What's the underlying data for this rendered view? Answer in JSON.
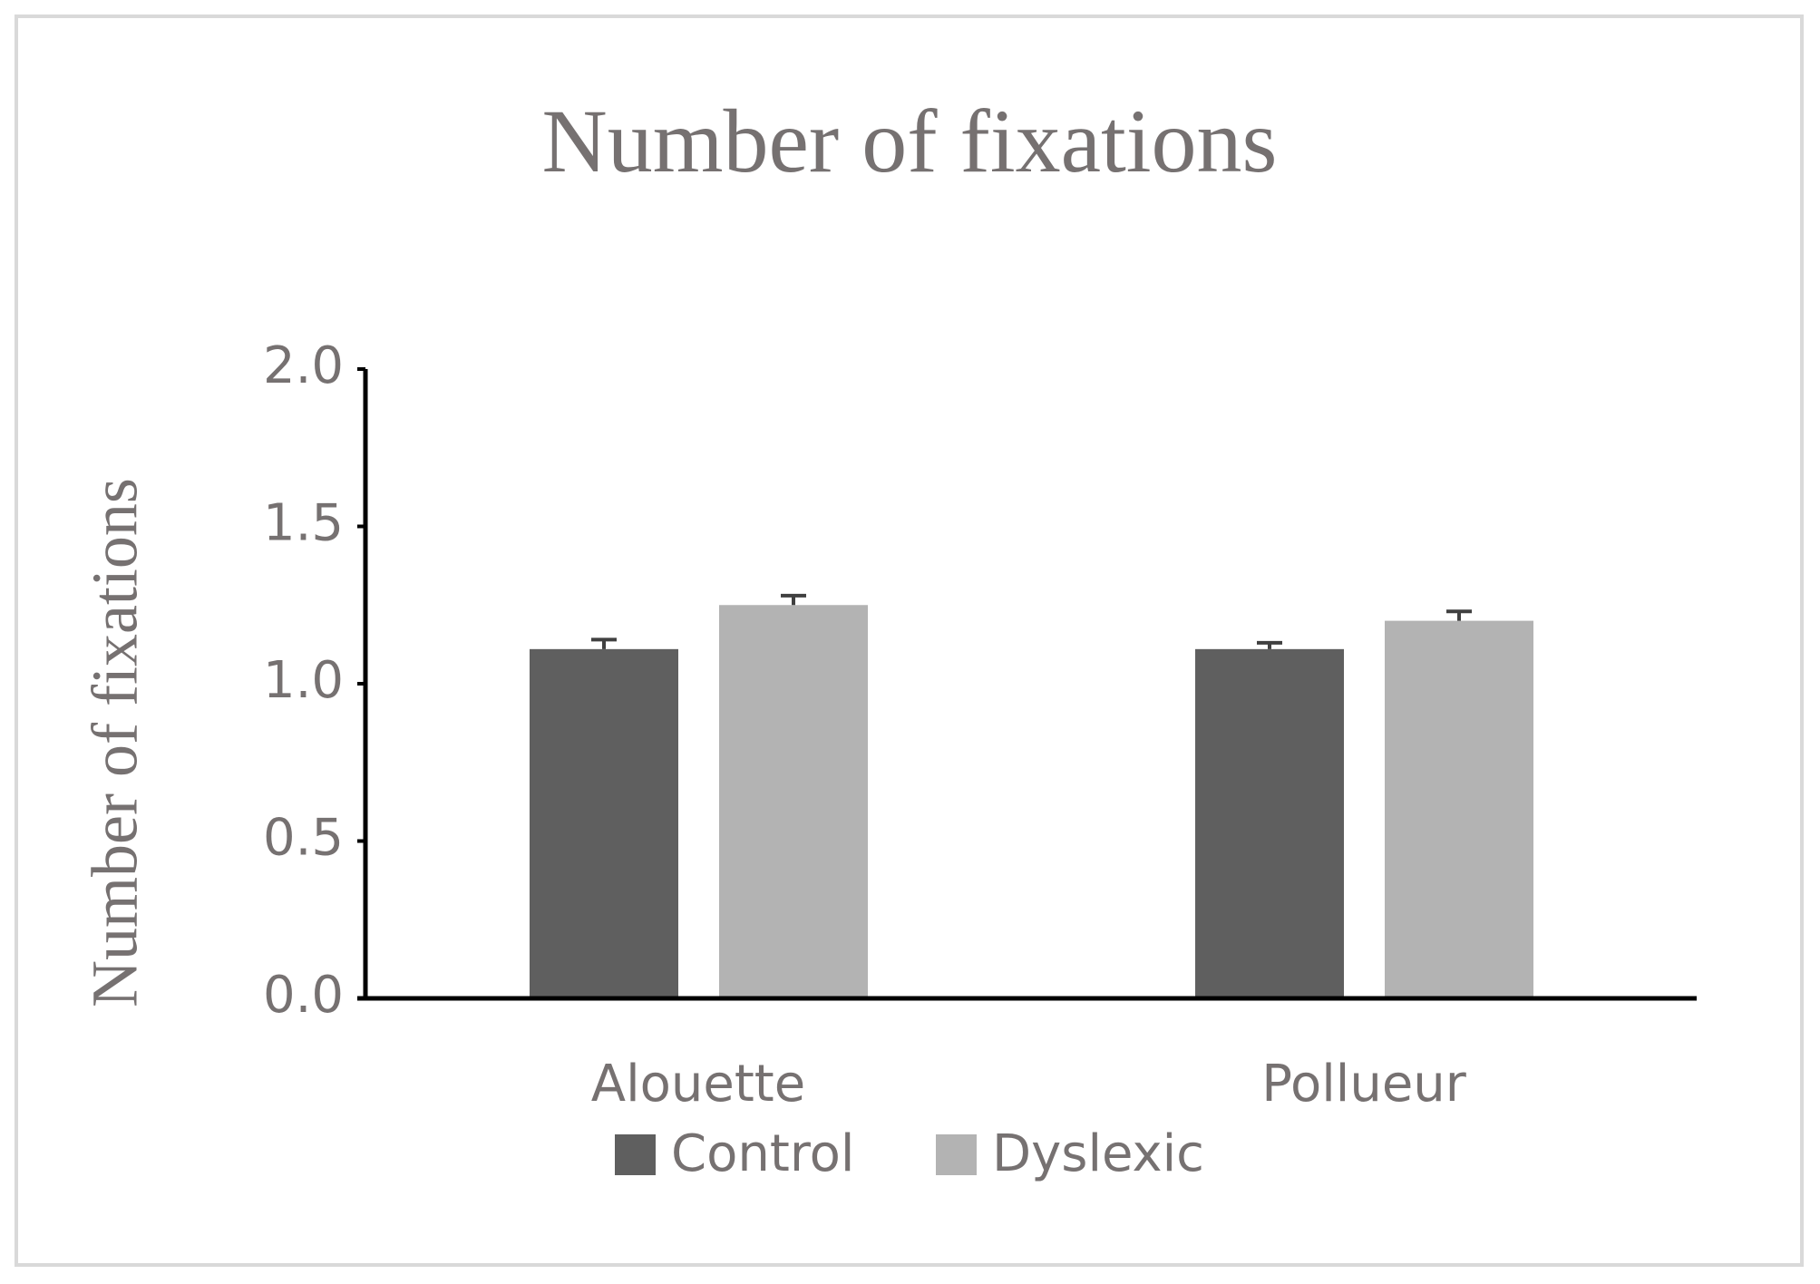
{
  "chart_data": {
    "type": "bar",
    "title": "Number of fixations",
    "y_label": "Number of fixations",
    "categories": [
      "Alouette",
      "Pollueur"
    ],
    "series": [
      {
        "name": "Control",
        "color": "#5f5f5f",
        "values": [
          1.11,
          1.11
        ],
        "errors": [
          0.03,
          0.02
        ]
      },
      {
        "name": "Dyslexic",
        "color": "#b3b3b3",
        "values": [
          1.25,
          1.2
        ],
        "errors": [
          0.03,
          0.03
        ]
      }
    ],
    "ylim": [
      0,
      2.0
    ],
    "yticks": [
      {
        "value": 0,
        "label": "0.0"
      },
      {
        "value": 0.5,
        "label": "0.5"
      },
      {
        "value": 1,
        "label": "1.0"
      },
      {
        "value": 1.5,
        "label": "1.5"
      },
      {
        "value": 2,
        "label": "2.0"
      }
    ],
    "grid": false,
    "legend": "bottom"
  }
}
